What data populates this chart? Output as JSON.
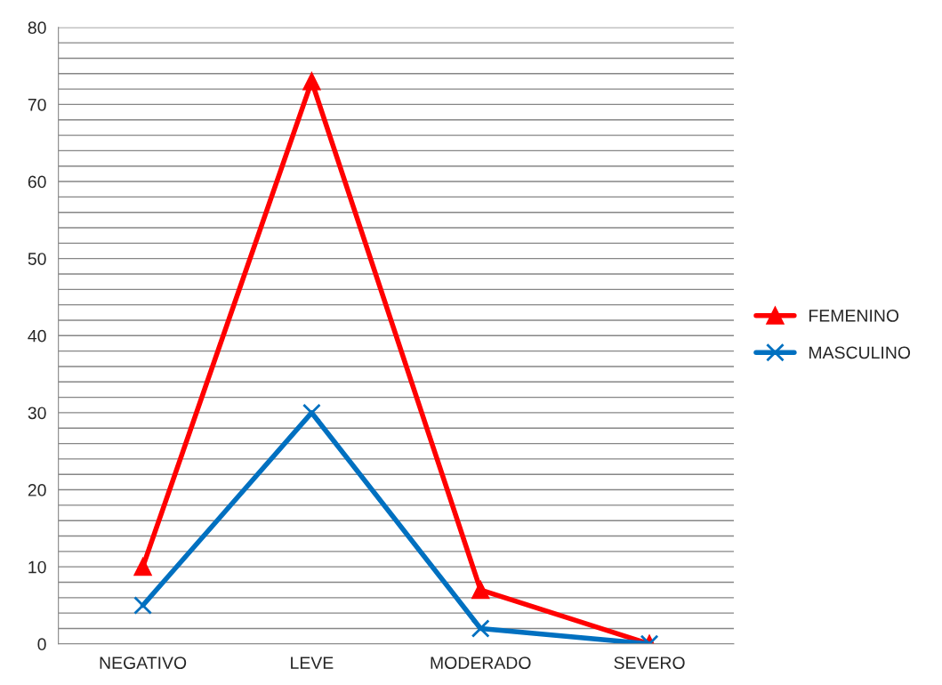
{
  "chart_data": {
    "type": "line",
    "categories": [
      "NEGATIVO",
      "LEVE",
      "MODERADO",
      "SEVERO"
    ],
    "series": [
      {
        "name": "FEMENINO",
        "color": "#ff0000",
        "marker": "triangle",
        "values": [
          10,
          73,
          7,
          0
        ]
      },
      {
        "name": "MASCULINO",
        "color": "#0070c0",
        "marker": "cross",
        "values": [
          5,
          30,
          2,
          0
        ]
      }
    ],
    "ylim": [
      0,
      80
    ],
    "yticks": [
      0,
      {
        "value": 2,
        "label": null
      },
      {
        "value": 4,
        "label": null
      },
      {
        "value": 6,
        "label": null
      },
      {
        "value": 8,
        "label": null
      },
      10,
      {
        "value": 12,
        "label": null
      },
      {
        "value": 14,
        "label": null
      },
      {
        "value": 16,
        "label": null
      },
      {
        "value": 18,
        "label": null
      },
      20,
      {
        "value": 22,
        "label": null
      },
      {
        "value": 24,
        "label": null
      },
      {
        "value": 26,
        "label": null
      },
      {
        "value": 28,
        "label": null
      },
      30,
      {
        "value": 32,
        "label": null
      },
      {
        "value": 34,
        "label": null
      },
      {
        "value": 36,
        "label": null
      },
      {
        "value": 38,
        "label": null
      },
      40,
      {
        "value": 42,
        "label": null
      },
      {
        "value": 44,
        "label": null
      },
      {
        "value": 46,
        "label": null
      },
      {
        "value": 48,
        "label": null
      },
      50,
      {
        "value": 52,
        "label": null
      },
      {
        "value": 54,
        "label": null
      },
      {
        "value": 56,
        "label": null
      },
      {
        "value": 58,
        "label": null
      },
      60,
      {
        "value": 62,
        "label": null
      },
      {
        "value": 64,
        "label": null
      },
      {
        "value": 66,
        "label": null
      },
      {
        "value": 68,
        "label": null
      },
      70,
      {
        "value": 72,
        "label": null
      },
      {
        "value": 74,
        "label": null
      },
      {
        "value": 76,
        "label": null
      },
      {
        "value": 78,
        "label": null
      },
      80
    ],
    "grid": "y",
    "legend": "right",
    "line_style": "solid"
  }
}
